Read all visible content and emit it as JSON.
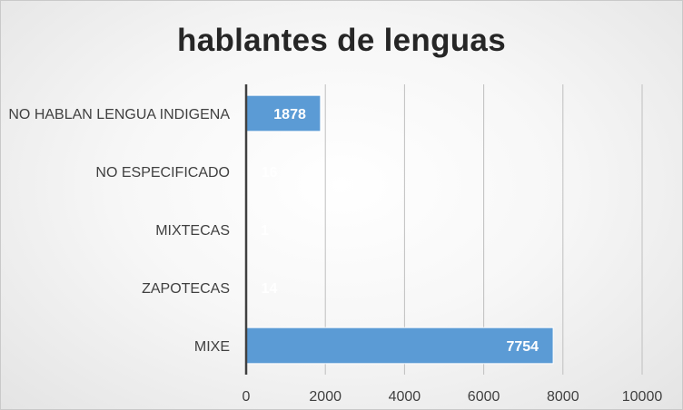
{
  "chart_data": {
    "type": "bar",
    "orientation": "horizontal",
    "title": "hablantes de lenguas",
    "categories": [
      "NO HABLAN LENGUA INDIGENA",
      "NO ESPECIFICADO",
      "MIXTECAS",
      "ZAPOTECAS",
      "MIXE"
    ],
    "values": [
      1878,
      16,
      1,
      14,
      7754
    ],
    "data_labels": [
      "1878",
      "16",
      "1",
      "14",
      "7754"
    ],
    "xlim": [
      0,
      10000
    ],
    "x_ticks": [
      "0",
      "2000",
      "4000",
      "6000",
      "8000",
      "10000"
    ],
    "grid": true,
    "legend": "none",
    "colors": {
      "bar": "#5b9bd5",
      "bar_border": "#ffffff",
      "label": "#ffffff",
      "axis_text": "#404040",
      "gridline": "#bfbfbf",
      "axis_line": "#404040"
    }
  }
}
